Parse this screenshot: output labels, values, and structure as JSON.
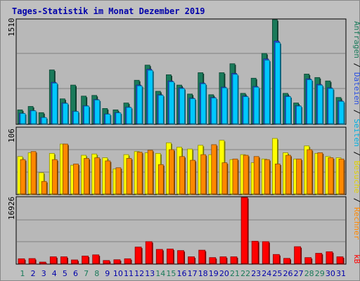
{
  "title": "Tages-Statistik im Monat Dezember 2019",
  "panels": {
    "top": {
      "max_label": "1510"
    },
    "mid": {
      "max_label": "106"
    },
    "bot": {
      "max_label": "16926"
    }
  },
  "right_labels": {
    "anfragen": "Anfragen",
    "dateien": "Dateien",
    "seiten": "Seiten",
    "besuche": "Besuche",
    "rechner": "Rechner",
    "kb": "kB",
    "sep": " / "
  },
  "colors": {
    "anfragen": "#1a7a5a",
    "dateien": "#2a4fe0",
    "seiten": "#00c8ff",
    "besuche": "#ffff00",
    "rechner": "#ff8800",
    "kb": "#ff0000",
    "weekend_day": "#1a7a5a",
    "weekday": "#0000aa"
  },
  "chart_data": {
    "type": "bar",
    "categories": [
      "1",
      "2",
      "3",
      "4",
      "5",
      "6",
      "7",
      "8",
      "9",
      "10",
      "11",
      "12",
      "13",
      "14",
      "15",
      "16",
      "17",
      "18",
      "19",
      "20",
      "21",
      "22",
      "23",
      "24",
      "25",
      "26",
      "27",
      "28",
      "29",
      "30",
      "31"
    ],
    "weekend_days": [
      "1",
      "7",
      "8",
      "14",
      "15",
      "21",
      "22",
      "28",
      "29"
    ],
    "panels": [
      {
        "name": "requests",
        "ymax": 1510,
        "series": [
          {
            "name": "Anfragen",
            "values": [
              200,
              250,
              160,
              780,
              360,
              560,
              400,
              410,
              220,
              200,
              300,
              630,
              850,
              470,
              710,
              560,
              430,
              740,
              420,
              740,
              870,
              440,
              660,
              1020,
              1510,
              440,
              300,
              720,
              670,
              620,
              380
            ]
          },
          {
            "name": "Dateien",
            "values": [
              150,
              190,
              90,
              600,
              300,
              180,
              260,
              350,
              140,
              160,
              240,
              560,
              790,
              420,
              620,
              520,
              370,
              590,
              380,
              530,
              730,
              400,
              540,
              940,
              1200,
              400,
              260,
              650,
              570,
              520,
              330
            ]
          },
          {
            "name": "Seiten",
            "values": [
              150,
              190,
              90,
              600,
              300,
              180,
              260,
              350,
              140,
              160,
              240,
              560,
              790,
              420,
              620,
              520,
              370,
              590,
              380,
              530,
              730,
              400,
              540,
              940,
              1200,
              400,
              260,
              650,
              570,
              520,
              330
            ]
          }
        ]
      },
      {
        "name": "visits",
        "ymax": 106,
        "series": [
          {
            "name": "Besuche",
            "values": [
              60,
              66,
              34,
              65,
              80,
              46,
              62,
              64,
              58,
              40,
              63,
              68,
              66,
              65,
              82,
              75,
              72,
              78,
              63,
              86,
              55,
              63,
              50,
              56,
              89,
              66,
              56,
              77,
              65,
              60,
              58
            ]
          },
          {
            "name": "Rechner",
            "values": [
              55,
              68,
              20,
              55,
              80,
              48,
              57,
              58,
              53,
              42,
              57,
              67,
              70,
              47,
              71,
              60,
              54,
              63,
              79,
              50,
              56,
              62,
              60,
              55,
              48,
              62,
              56,
              71,
              66,
              58,
              56
            ]
          }
        ]
      },
      {
        "name": "traffic",
        "ymax": 16926,
        "series": [
          {
            "name": "kB",
            "values": [
              1200,
              1250,
              350,
              1700,
              1700,
              900,
              1900,
              2200,
              760,
              950,
              1200,
              4200,
              5600,
              3600,
              3700,
              3300,
              1700,
              3400,
              1500,
              1700,
              1700,
              16926,
              5700,
              5600,
              2300,
              1300,
              4300,
              1500,
              2600,
              3000,
              1700
            ]
          }
        ]
      }
    ]
  }
}
